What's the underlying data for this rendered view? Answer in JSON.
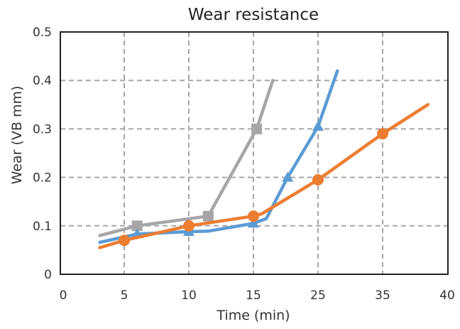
{
  "chart_data": {
    "type": "line",
    "title": "Wear resistance",
    "xlabel": "Time (min)",
    "ylabel": "Wear  (VB mm)",
    "x_tick_labels": [
      "0",
      "5",
      "10",
      "15",
      "25",
      "35",
      "40"
    ],
    "y_tick_labels": [
      "0",
      "0.1",
      "0.2",
      "0.3",
      "0.4",
      "0.5"
    ],
    "ylim": [
      0,
      0.5
    ],
    "grid": true,
    "series": [
      {
        "color": "#a7a5a8",
        "marker": "square",
        "x": [
          3,
          6,
          11.5,
          15.5,
          18
        ],
        "y": [
          0.08,
          0.1,
          0.12,
          0.3,
          0.4
        ],
        "marked": [
          false,
          true,
          true,
          true,
          false
        ]
      },
      {
        "color": "#5b9bd5",
        "marker": "triangle",
        "x": [
          3,
          6,
          10,
          11.5,
          15,
          17,
          20.3,
          25,
          28
        ],
        "y": [
          0.066,
          0.083,
          0.088,
          0.089,
          0.105,
          0.115,
          0.2,
          0.305,
          0.42
        ],
        "marked": [
          false,
          true,
          true,
          false,
          true,
          false,
          true,
          true,
          false
        ]
      },
      {
        "color": "#ed7d31",
        "marker": "circle",
        "x": [
          3,
          5,
          10,
          15,
          16.3,
          25,
          35,
          38.5
        ],
        "y": [
          0.055,
          0.07,
          0.1,
          0.12,
          0.125,
          0.195,
          0.29,
          0.35
        ],
        "marked": [
          false,
          true,
          true,
          true,
          false,
          true,
          true,
          false
        ]
      }
    ]
  }
}
